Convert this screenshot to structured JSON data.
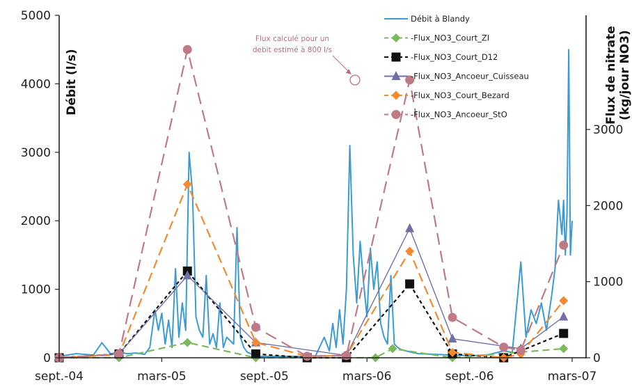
{
  "chart_data": {
    "type": "line",
    "y_left": {
      "label": "Débit (l/s)",
      "ticks": [
        0,
        1000,
        2000,
        3000,
        4000,
        5000
      ],
      "range": [
        0,
        5000
      ]
    },
    "y_right": {
      "label_line1": "Flux de nitrate",
      "label_line2": "(kg/jour NO3)",
      "ticks": [
        0,
        1000,
        2000,
        3000
      ],
      "range": [
        0,
        4500
      ]
    },
    "x_axis": {
      "ticks": [
        "sept.-04",
        "mars-05",
        "sept.-05",
        "mars-06",
        "sept.-06",
        "mars-07"
      ],
      "range_months": [
        0,
        30
      ]
    },
    "annotation": {
      "line1": "Flux calculé pour un",
      "line2": "debit estimé à 800 l/s",
      "target_month": 17.3,
      "target_value": 3650
    },
    "flow_series": {
      "name": "Débit à Blandy",
      "color": "#3a9bd5",
      "axis": "left",
      "x_months": [
        0,
        1,
        2,
        2.5,
        3,
        3.5,
        4,
        4.5,
        5,
        5.3,
        5.6,
        5.8,
        6,
        6.2,
        6.4,
        6.6,
        6.8,
        7,
        7.2,
        7.4,
        7.6,
        7.8,
        8,
        8.2,
        8.4,
        8.6,
        8.8,
        9,
        9.2,
        9.4,
        9.6,
        9.8,
        10,
        10.2,
        10.4,
        10.6,
        10.8,
        11,
        11.2,
        11.4,
        11.6,
        11.8,
        12,
        12.5,
        13,
        14,
        15,
        15.5,
        15.8,
        16,
        16.2,
        16.4,
        16.6,
        16.8,
        17,
        17.2,
        17.4,
        17.6,
        17.8,
        18,
        18.2,
        18.4,
        18.6,
        18.8,
        19,
        19.2,
        19.4,
        19.6,
        19.8,
        20,
        20.3,
        20.6,
        21,
        22,
        23,
        24,
        25,
        26,
        26.5,
        27,
        27.3,
        27.6,
        27.9,
        28.2,
        28.5,
        28.8,
        29,
        29.2,
        29.4,
        29.5,
        29.6,
        29.7,
        29.8,
        29.9,
        30
      ],
      "y": [
        20,
        60,
        40,
        220,
        60,
        80,
        60,
        70,
        50,
        150,
        700,
        400,
        650,
        200,
        550,
        150,
        1300,
        300,
        800,
        400,
        3000,
        2400,
        600,
        400,
        300,
        1200,
        200,
        350,
        150,
        800,
        150,
        300,
        250,
        200,
        1900,
        300,
        150,
        80,
        60,
        40,
        30,
        20,
        20,
        20,
        20,
        20,
        30,
        300,
        100,
        500,
        150,
        700,
        200,
        1000,
        3100,
        1500,
        800,
        1700,
        1100,
        600,
        1600,
        1000,
        1400,
        500,
        300,
        200,
        1200,
        200,
        150,
        120,
        100,
        80,
        60,
        50,
        40,
        30,
        40,
        100,
        80,
        1400,
        300,
        700,
        500,
        800,
        400,
        900,
        1300,
        2300,
        1800,
        2300,
        1500,
        2100,
        4500,
        1500,
        2000
      ]
    },
    "series": [
      {
        "name": "Flux_NO3_Court_ZI",
        "color": "#7cb95c",
        "dash": "10,6",
        "marker": "diamond",
        "x_months": [
          0,
          3.5,
          7.5,
          11.5,
          18.5,
          19.5,
          23,
          29.5
        ],
        "y": [
          0,
          0,
          200,
          0,
          0,
          120,
          0,
          120
        ]
      },
      {
        "name": "Flux_NO3_Court_D12",
        "color": "#111111",
        "dash": "5,4",
        "marker": "square",
        "x_months": [
          0,
          3.5,
          7.5,
          11.5,
          14.5,
          16.8,
          20.5,
          23,
          26,
          29.5
        ],
        "y": [
          0,
          50,
          1140,
          50,
          0,
          0,
          970,
          50,
          0,
          320
        ]
      },
      {
        "name": "Flux_NO3_Ancoeur_Cuisseau",
        "color": "#7070a8",
        "dash": "",
        "marker": "triangle",
        "x_months": [
          0,
          3.5,
          7.5,
          11.5,
          16.8,
          20.5,
          23,
          27,
          29.5
        ],
        "y": [
          0,
          50,
          1080,
          200,
          30,
          1700,
          250,
          120,
          540
        ]
      },
      {
        "name": "Flux_NO3_Court_Bezard",
        "color": "#f28a30",
        "dash": "13,7",
        "marker": "diamond",
        "x_months": [
          0,
          3.5,
          7.5,
          11.5,
          14.5,
          16.8,
          20.5,
          23,
          26,
          27,
          29.5
        ],
        "y": [
          0,
          40,
          2280,
          200,
          20,
          30,
          1400,
          70,
          0,
          50,
          750
        ]
      },
      {
        "name": "Flux_NO3_Ancoeur_StO",
        "color": "#c07a86",
        "dash": "17,9",
        "marker": "circle",
        "x_months": [
          0,
          3.5,
          7.5,
          11.5,
          14.5,
          16.8,
          20.5,
          23,
          26,
          27,
          29.5
        ],
        "y": [
          0,
          50,
          4050,
          400,
          20,
          30,
          3650,
          530,
          140,
          100,
          1480
        ]
      }
    ]
  }
}
